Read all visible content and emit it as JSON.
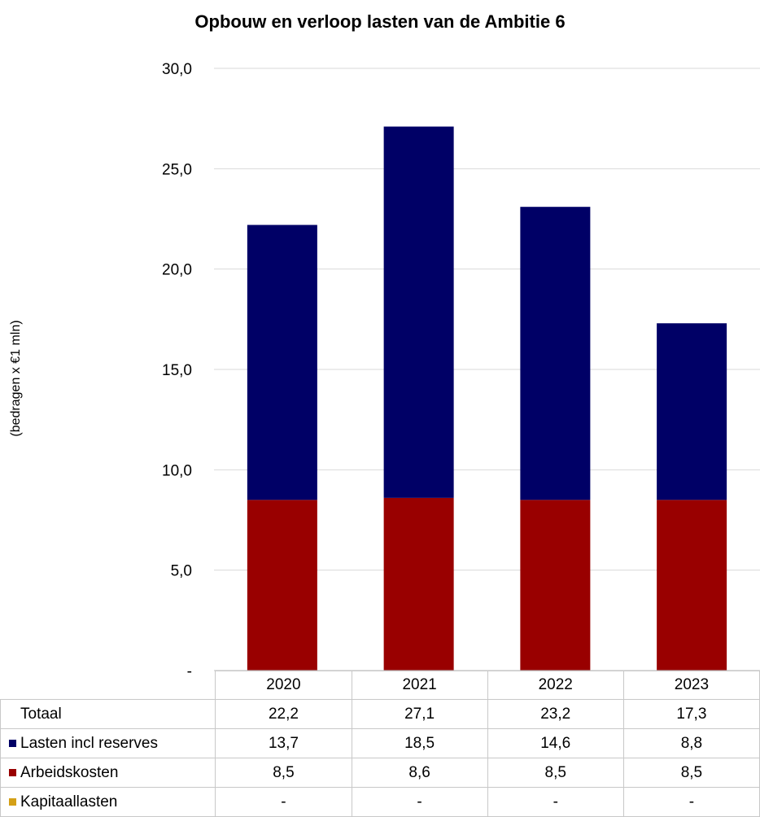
{
  "chart_data": {
    "type": "bar",
    "stacked": true,
    "title": "Opbouw en verloop lasten van de Ambitie 6",
    "ylabel": "(bedragen x €1 mln)",
    "ylim": [
      0,
      30
    ],
    "yticks": [
      "-",
      "5,0",
      "10,0",
      "15,0",
      "20,0",
      "25,0",
      "30,0"
    ],
    "grid": true,
    "categories": [
      "2020",
      "2021",
      "2022",
      "2023"
    ],
    "series": [
      {
        "name": "Arbeidskosten",
        "values": [
          8.5,
          8.6,
          8.5,
          8.5
        ],
        "labels": [
          "8,5",
          "8,6",
          "8,5",
          "8,5"
        ],
        "color": "#990000"
      },
      {
        "name": "Lasten incl reserves",
        "values": [
          13.7,
          18.5,
          14.6,
          8.8
        ],
        "labels": [
          "13,7",
          "18,5",
          "14,6",
          "8,8"
        ],
        "color": "#000066"
      },
      {
        "name": "Kapitaallasten",
        "values": [
          0,
          0,
          0,
          0
        ],
        "labels": [
          "-",
          "-",
          "-",
          "-"
        ],
        "color": "#d4a017"
      }
    ],
    "totals": {
      "name": "Totaal",
      "values": [
        22.2,
        27.1,
        23.2,
        17.3
      ],
      "labels": [
        "22,2",
        "27,1",
        "23,2",
        "17,3"
      ]
    },
    "table_rows": [
      {
        "name": "Totaal",
        "swatch": "",
        "labels": [
          "22,2",
          "27,1",
          "23,2",
          "17,3"
        ]
      },
      {
        "name": "Lasten incl reserves",
        "swatch": "#000066",
        "labels": [
          "13,7",
          "18,5",
          "14,6",
          "8,8"
        ]
      },
      {
        "name": "Arbeidskosten",
        "swatch": "#990000",
        "labels": [
          "8,5",
          "8,6",
          "8,5",
          "8,5"
        ]
      },
      {
        "name": "Kapitaallasten",
        "swatch": "#d4a017",
        "labels": [
          "-",
          "-",
          "-",
          "-"
        ]
      }
    ]
  }
}
